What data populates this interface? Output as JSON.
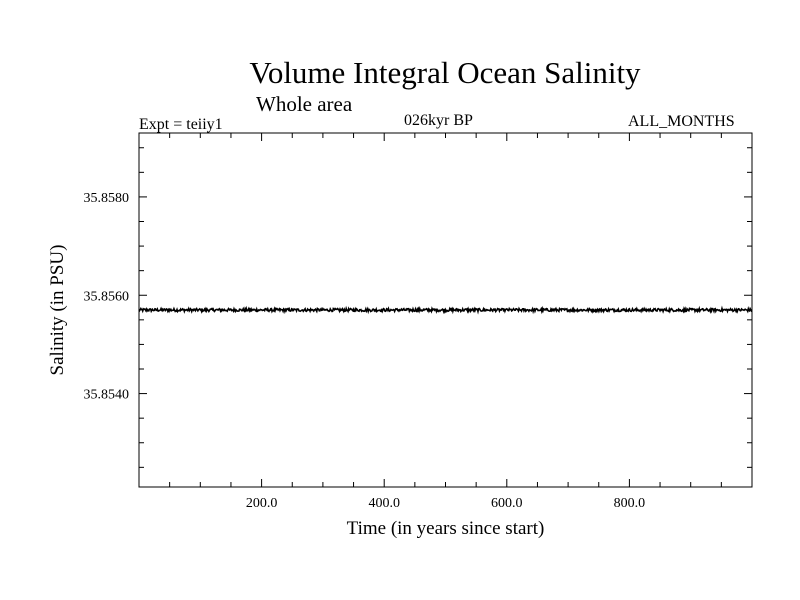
{
  "chart_data": {
    "type": "line",
    "title": "Volume Integral Ocean Salinity",
    "subtitle": "Whole area",
    "annotations": {
      "left": "Expt = teiiy1",
      "center": "026kyr BP",
      "right": "ALL_MONTHS"
    },
    "xlabel": "Time (in years since start)",
    "ylabel": "Salinity (in PSU)",
    "xlim": [
      0,
      1000
    ],
    "ylim": [
      35.8521,
      35.8593
    ],
    "x_ticks": [
      200,
      400,
      600,
      800
    ],
    "x_tick_labels": [
      "200.0",
      "400.0",
      "600.0",
      "800.0"
    ],
    "y_ticks": [
      35.854,
      35.856,
      35.858
    ],
    "y_tick_labels": [
      "35.8540",
      "35.8560",
      "35.8580"
    ],
    "grid": false,
    "series": [
      {
        "x": [
          0,
          100,
          200,
          300,
          400,
          500,
          600,
          700,
          800,
          900,
          1000
        ],
        "y": [
          35.8557,
          35.8557,
          35.8557,
          35.8557,
          35.8557,
          35.8557,
          35.8557,
          35.8557,
          35.8557,
          35.8557,
          35.8557
        ],
        "noise_amplitude": 3e-05
      }
    ]
  }
}
